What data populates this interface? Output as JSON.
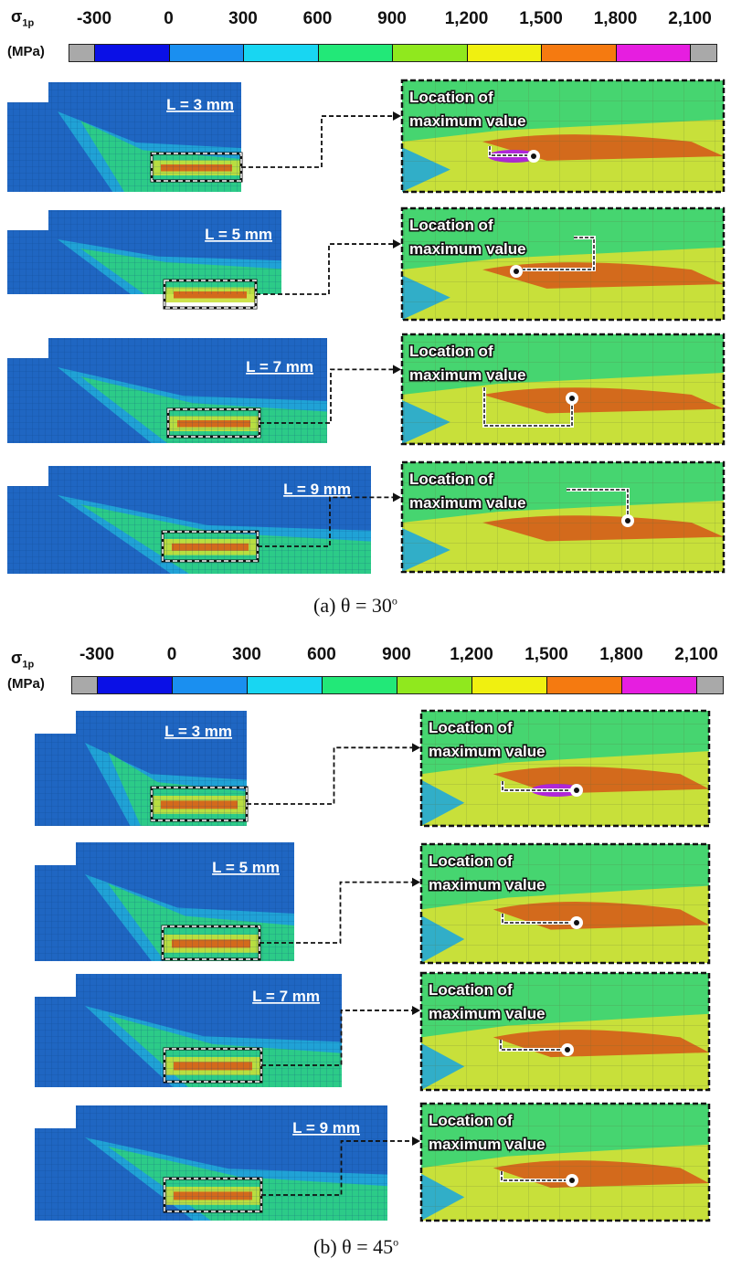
{
  "colorbar": {
    "symbol": "σ",
    "subscript": "1p",
    "unit": "(MPa)",
    "ticks": [
      "-300",
      "0",
      "300",
      "600",
      "900",
      "1,200",
      "1,500",
      "1,800",
      "2,100"
    ],
    "colors": [
      "#0a10e6",
      "#1a8ff0",
      "#18d6f2",
      "#22e878",
      "#90e81e",
      "#f0f010",
      "#f57a10",
      "#e61ee0"
    ],
    "end_color": "#a9a9a9"
  },
  "figure_a": {
    "caption": "(a) θ = 30",
    "caption_sup": "o",
    "rows": [
      {
        "label": "L = 3 mm",
        "zoom_line1": "Location of",
        "zoom_line2": "maximum value"
      },
      {
        "label": "L = 5 mm",
        "zoom_line1": "Location of",
        "zoom_line2": "maximum value"
      },
      {
        "label": "L = 7 mm",
        "zoom_line1": "Location of",
        "zoom_line2": "maximum value"
      },
      {
        "label": "L = 9 mm",
        "zoom_line1": "Location of",
        "zoom_line2": "maximum value"
      }
    ]
  },
  "figure_b": {
    "caption": "(b) θ = 45",
    "caption_sup": "o",
    "rows": [
      {
        "label": "L = 3 mm",
        "zoom_line1": "Location of",
        "zoom_line2": "maximum value"
      },
      {
        "label": "L = 5 mm",
        "zoom_line1": "Location of",
        "zoom_line2": "maximum value"
      },
      {
        "label": "L = 7 mm",
        "zoom_line1": "Location of",
        "zoom_line2": "maximum value"
      },
      {
        "label": "L = 9 mm",
        "zoom_line1": "Location of",
        "zoom_line2": "maximum value"
      }
    ]
  },
  "mesh_colors": {
    "base": "#1f66c2",
    "mid": "#20a8d8",
    "green": "#2fd27a",
    "yellow": "#c8e03a",
    "orange": "#d36a1c",
    "magenta": "#b026d8"
  }
}
